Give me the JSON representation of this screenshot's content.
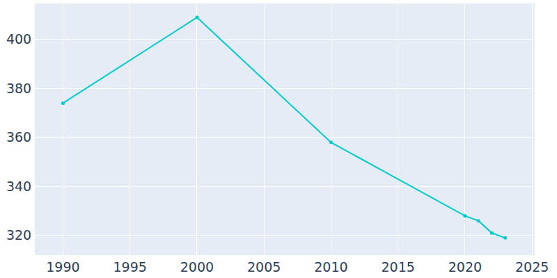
{
  "chart_data": {
    "type": "line",
    "x": [
      1990,
      2000,
      2010,
      2020,
      2021,
      2022,
      2023
    ],
    "values": [
      374,
      409,
      358,
      328,
      326,
      321,
      319
    ],
    "color": "#00cccc",
    "marker": "circle",
    "xlim": [
      1987.9,
      2025.2
    ],
    "xticks": [
      1990,
      1995,
      2000,
      2005,
      2010,
      2015,
      2020,
      2025
    ],
    "ylim": [
      312,
      414.7
    ],
    "yticks": [
      320,
      340,
      360,
      380,
      400
    ],
    "grid": true
  }
}
